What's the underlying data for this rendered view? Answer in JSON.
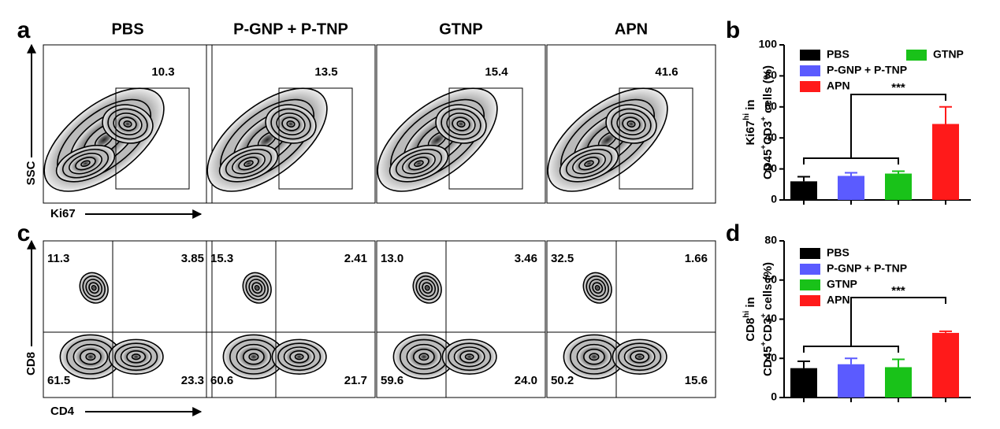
{
  "panel_labels": [
    "a",
    "b",
    "c",
    "d"
  ],
  "flow": {
    "groups": [
      "PBS",
      "P-GNP + P-TNP",
      "GTNP",
      "APN"
    ],
    "ki67": {
      "y_label": "SSC",
      "x_label": "Ki67",
      "gates": [
        "10.3",
        "13.5",
        "15.4",
        "41.6"
      ]
    },
    "cd": {
      "y_label": "CD8",
      "x_label": "CD4",
      "quadrants": [
        [
          "11.3",
          "3.85",
          "61.5",
          "23.3"
        ],
        [
          "15.3",
          "2.41",
          "60.6",
          "21.7"
        ],
        [
          "13.0",
          "3.46",
          "59.6",
          "24.0"
        ],
        [
          "32.5",
          "1.66",
          "50.2",
          "15.6"
        ]
      ]
    }
  },
  "chart_data": [
    {
      "type": "bar",
      "ylabel": [
        [
          "Ki67",
          "hi",
          " in"
        ],
        [
          "CD45",
          "+",
          "CD3",
          "+",
          " cells (%)"
        ]
      ],
      "categories": [
        "PBS",
        "P-GNP + P-TNP",
        "GTNP",
        "APN"
      ],
      "values": [
        12,
        15.5,
        17,
        49
      ],
      "errors": [
        3,
        2,
        1.5,
        11
      ],
      "colors": [
        "#000000",
        "#5b5bff",
        "#19c219",
        "#ff1a1a"
      ],
      "ylim": [
        0,
        100
      ],
      "yticks": [
        0,
        20,
        40,
        60,
        80,
        100
      ],
      "annotation": "***"
    },
    {
      "type": "bar",
      "ylabel": [
        [
          "CD8",
          "hi",
          " in"
        ],
        [
          "CD45",
          "+",
          "CD3",
          "+",
          " cells (%)"
        ]
      ],
      "categories": [
        "PBS",
        "P-GNP + P-TNP",
        "GTNP",
        "APN"
      ],
      "values": [
        15,
        17,
        15.5,
        33
      ],
      "errors": [
        3.5,
        3,
        4,
        0.8
      ],
      "colors": [
        "#000000",
        "#5b5bff",
        "#19c219",
        "#ff1a1a"
      ],
      "ylim": [
        0,
        80
      ],
      "yticks": [
        0,
        20,
        40,
        60,
        80
      ],
      "annotation": "***"
    }
  ]
}
